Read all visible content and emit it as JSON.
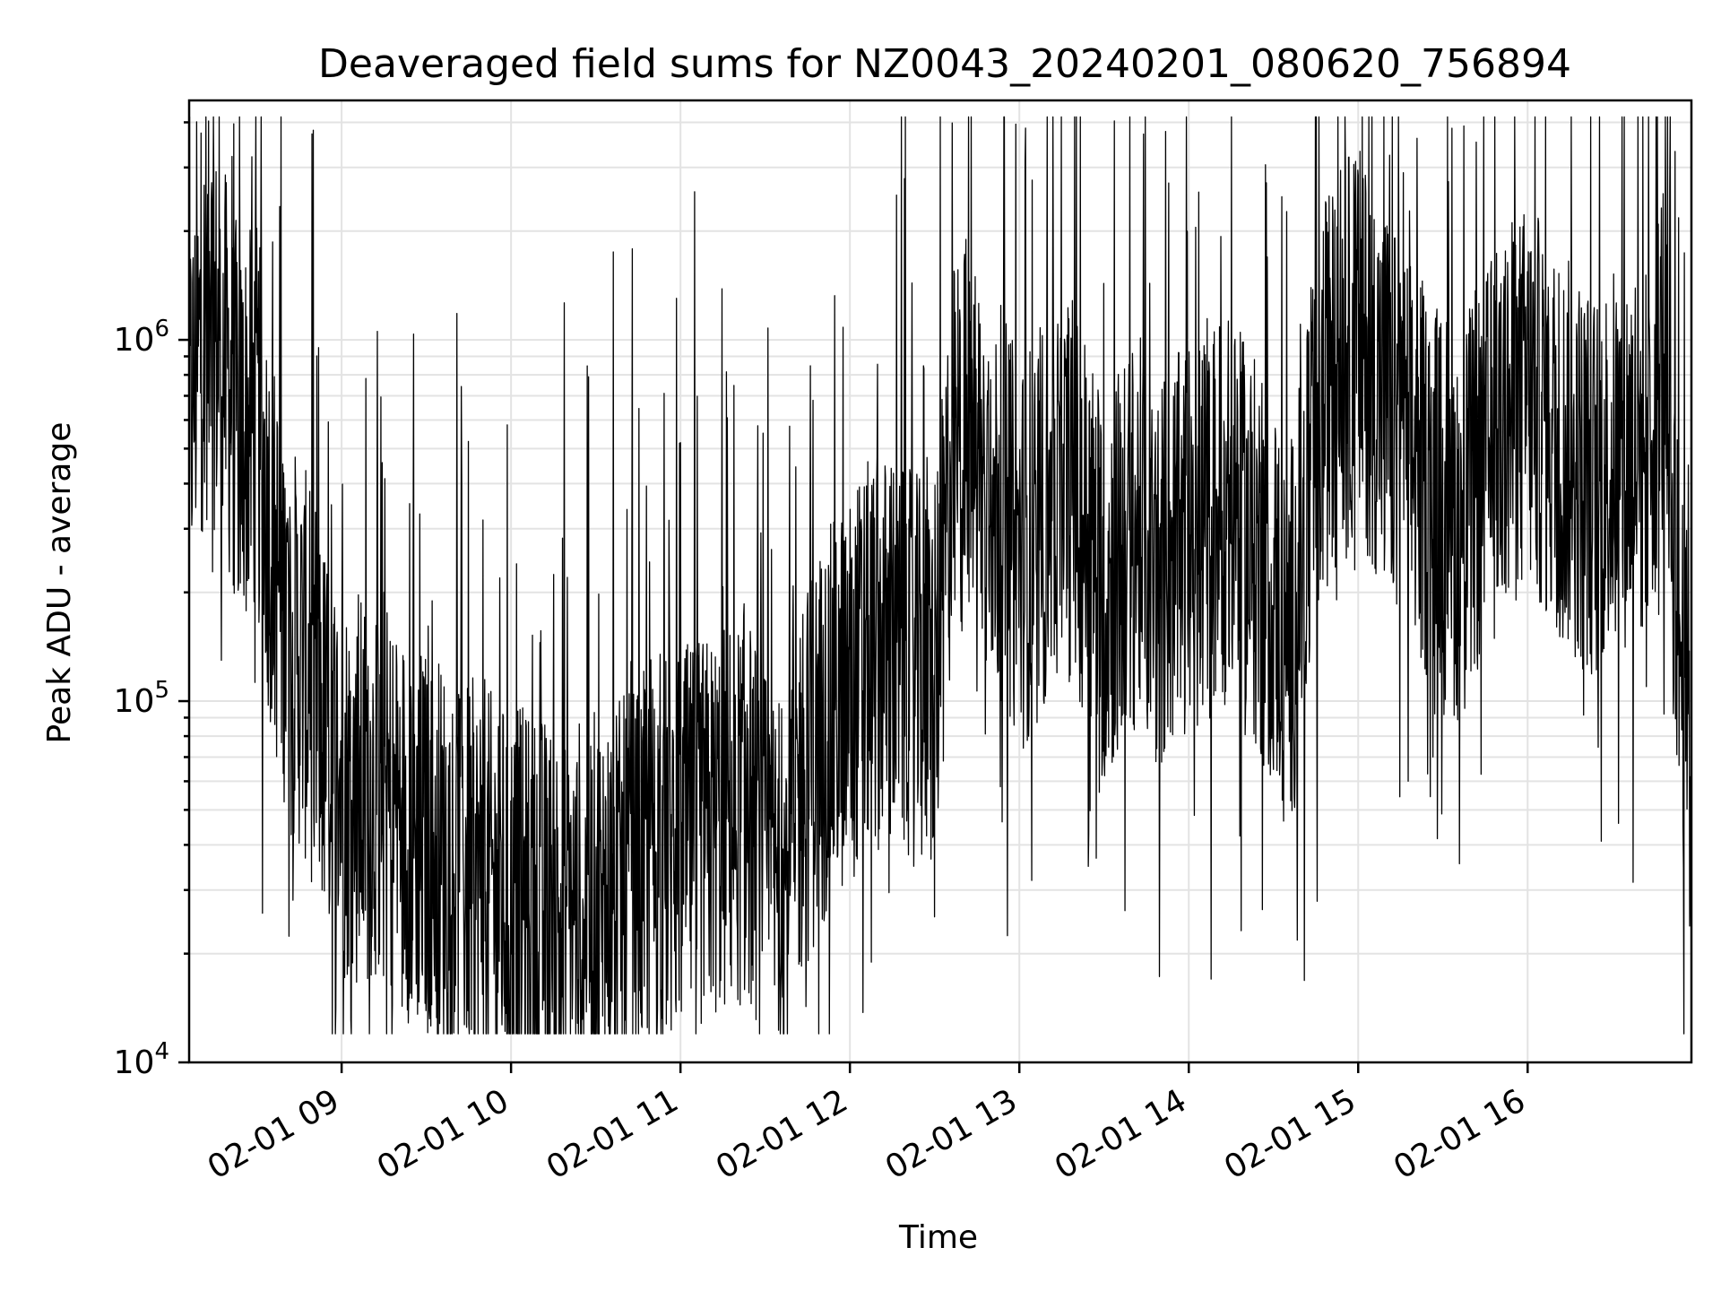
{
  "chart_data": {
    "type": "line",
    "title": "Deaveraged field sums for NZ0043_20240201_080620_756894",
    "xlabel": "Time",
    "ylabel": "Peak ADU - average",
    "yscale": "log",
    "ylim": [
      10000,
      4600000
    ],
    "xlim": [
      "2024-02-01 08:06",
      "2024-02-01 16:58"
    ],
    "grid": true,
    "line_color": "#000000",
    "x_ticks": [
      {
        "value": "2024-02-01 09:00",
        "label": "02-01 09"
      },
      {
        "value": "2024-02-01 10:00",
        "label": "02-01 10"
      },
      {
        "value": "2024-02-01 11:00",
        "label": "02-01 11"
      },
      {
        "value": "2024-02-01 12:00",
        "label": "02-01 12"
      },
      {
        "value": "2024-02-01 13:00",
        "label": "02-01 13"
      },
      {
        "value": "2024-02-01 14:00",
        "label": "02-01 14"
      },
      {
        "value": "2024-02-01 15:00",
        "label": "02-01 15"
      },
      {
        "value": "2024-02-01 16:00",
        "label": "02-01 16"
      }
    ],
    "y_ticks": [
      {
        "value": 10000,
        "base": "10",
        "exp": "4"
      },
      {
        "value": 100000,
        "base": "10",
        "exp": "5"
      },
      {
        "value": 1000000,
        "base": "10",
        "exp": "6"
      }
    ],
    "series": [
      {
        "x": [
          "2024-02-01 08:06",
          "2024-02-01 08:12",
          "2024-02-01 08:18",
          "2024-02-01 08:24",
          "2024-02-01 08:30",
          "2024-02-01 08:36",
          "2024-02-01 08:42",
          "2024-02-01 08:48",
          "2024-02-01 08:54",
          "2024-02-01 09:00",
          "2024-02-01 09:06",
          "2024-02-01 09:12",
          "2024-02-01 09:18",
          "2024-02-01 09:24",
          "2024-02-01 09:30",
          "2024-02-01 09:36",
          "2024-02-01 09:42",
          "2024-02-01 09:48",
          "2024-02-01 09:54",
          "2024-02-01 10:00",
          "2024-02-01 10:06",
          "2024-02-01 10:12",
          "2024-02-01 10:18",
          "2024-02-01 10:24",
          "2024-02-01 10:30",
          "2024-02-01 10:36",
          "2024-02-01 10:42",
          "2024-02-01 10:48",
          "2024-02-01 10:54",
          "2024-02-01 11:00",
          "2024-02-01 11:06",
          "2024-02-01 11:12",
          "2024-02-01 11:18",
          "2024-02-01 11:24",
          "2024-02-01 11:30",
          "2024-02-01 11:36",
          "2024-02-01 11:42",
          "2024-02-01 11:48",
          "2024-02-01 11:54",
          "2024-02-01 12:00",
          "2024-02-01 12:06",
          "2024-02-01 12:12",
          "2024-02-01 12:18",
          "2024-02-01 12:24",
          "2024-02-01 12:30",
          "2024-02-01 12:36",
          "2024-02-01 12:42",
          "2024-02-01 12:48",
          "2024-02-01 12:54",
          "2024-02-01 13:00",
          "2024-02-01 13:06",
          "2024-02-01 13:12",
          "2024-02-01 13:18",
          "2024-02-01 13:24",
          "2024-02-01 13:30",
          "2024-02-01 13:36",
          "2024-02-01 13:42",
          "2024-02-01 13:48",
          "2024-02-01 13:54",
          "2024-02-01 14:00",
          "2024-02-01 14:06",
          "2024-02-01 14:12",
          "2024-02-01 14:18",
          "2024-02-01 14:24",
          "2024-02-01 14:30",
          "2024-02-01 14:36",
          "2024-02-01 14:42",
          "2024-02-01 14:48",
          "2024-02-01 14:54",
          "2024-02-01 15:00",
          "2024-02-01 15:06",
          "2024-02-01 15:12",
          "2024-02-01 15:18",
          "2024-02-01 15:24",
          "2024-02-01 15:30",
          "2024-02-01 15:36",
          "2024-02-01 15:42",
          "2024-02-01 15:48",
          "2024-02-01 15:54",
          "2024-02-01 16:00",
          "2024-02-01 16:06",
          "2024-02-01 16:12",
          "2024-02-01 16:18",
          "2024-02-01 16:24",
          "2024-02-01 16:30",
          "2024-02-01 16:36",
          "2024-02-01 16:42",
          "2024-02-01 16:48",
          "2024-02-01 16:54",
          "2024-02-01 16:58"
        ],
        "y": [
          600000,
          1200000,
          900000,
          550000,
          600000,
          250000,
          150000,
          120000,
          80000,
          60000,
          55000,
          60000,
          50000,
          45000,
          40000,
          38000,
          35000,
          32000,
          30000,
          28000,
          27000,
          26000,
          25000,
          26000,
          27000,
          28000,
          30000,
          35000,
          38000,
          40000,
          42000,
          45000,
          48000,
          50000,
          35000,
          28000,
          55000,
          75000,
          90000,
          110000,
          130000,
          140000,
          130000,
          120000,
          110000,
          450000,
          600000,
          400000,
          350000,
          250000,
          300000,
          350000,
          400000,
          300000,
          200000,
          250000,
          300000,
          220000,
          250000,
          280000,
          300000,
          350000,
          300000,
          250000,
          200000,
          150000,
          300000,
          700000,
          900000,
          1000000,
          800000,
          600000,
          500000,
          400000,
          350000,
          300000,
          400000,
          500000,
          600000,
          700000,
          600000,
          500000,
          450000,
          400000,
          450000,
          500000,
          500000,
          900000,
          150000,
          60000
        ]
      }
    ]
  }
}
